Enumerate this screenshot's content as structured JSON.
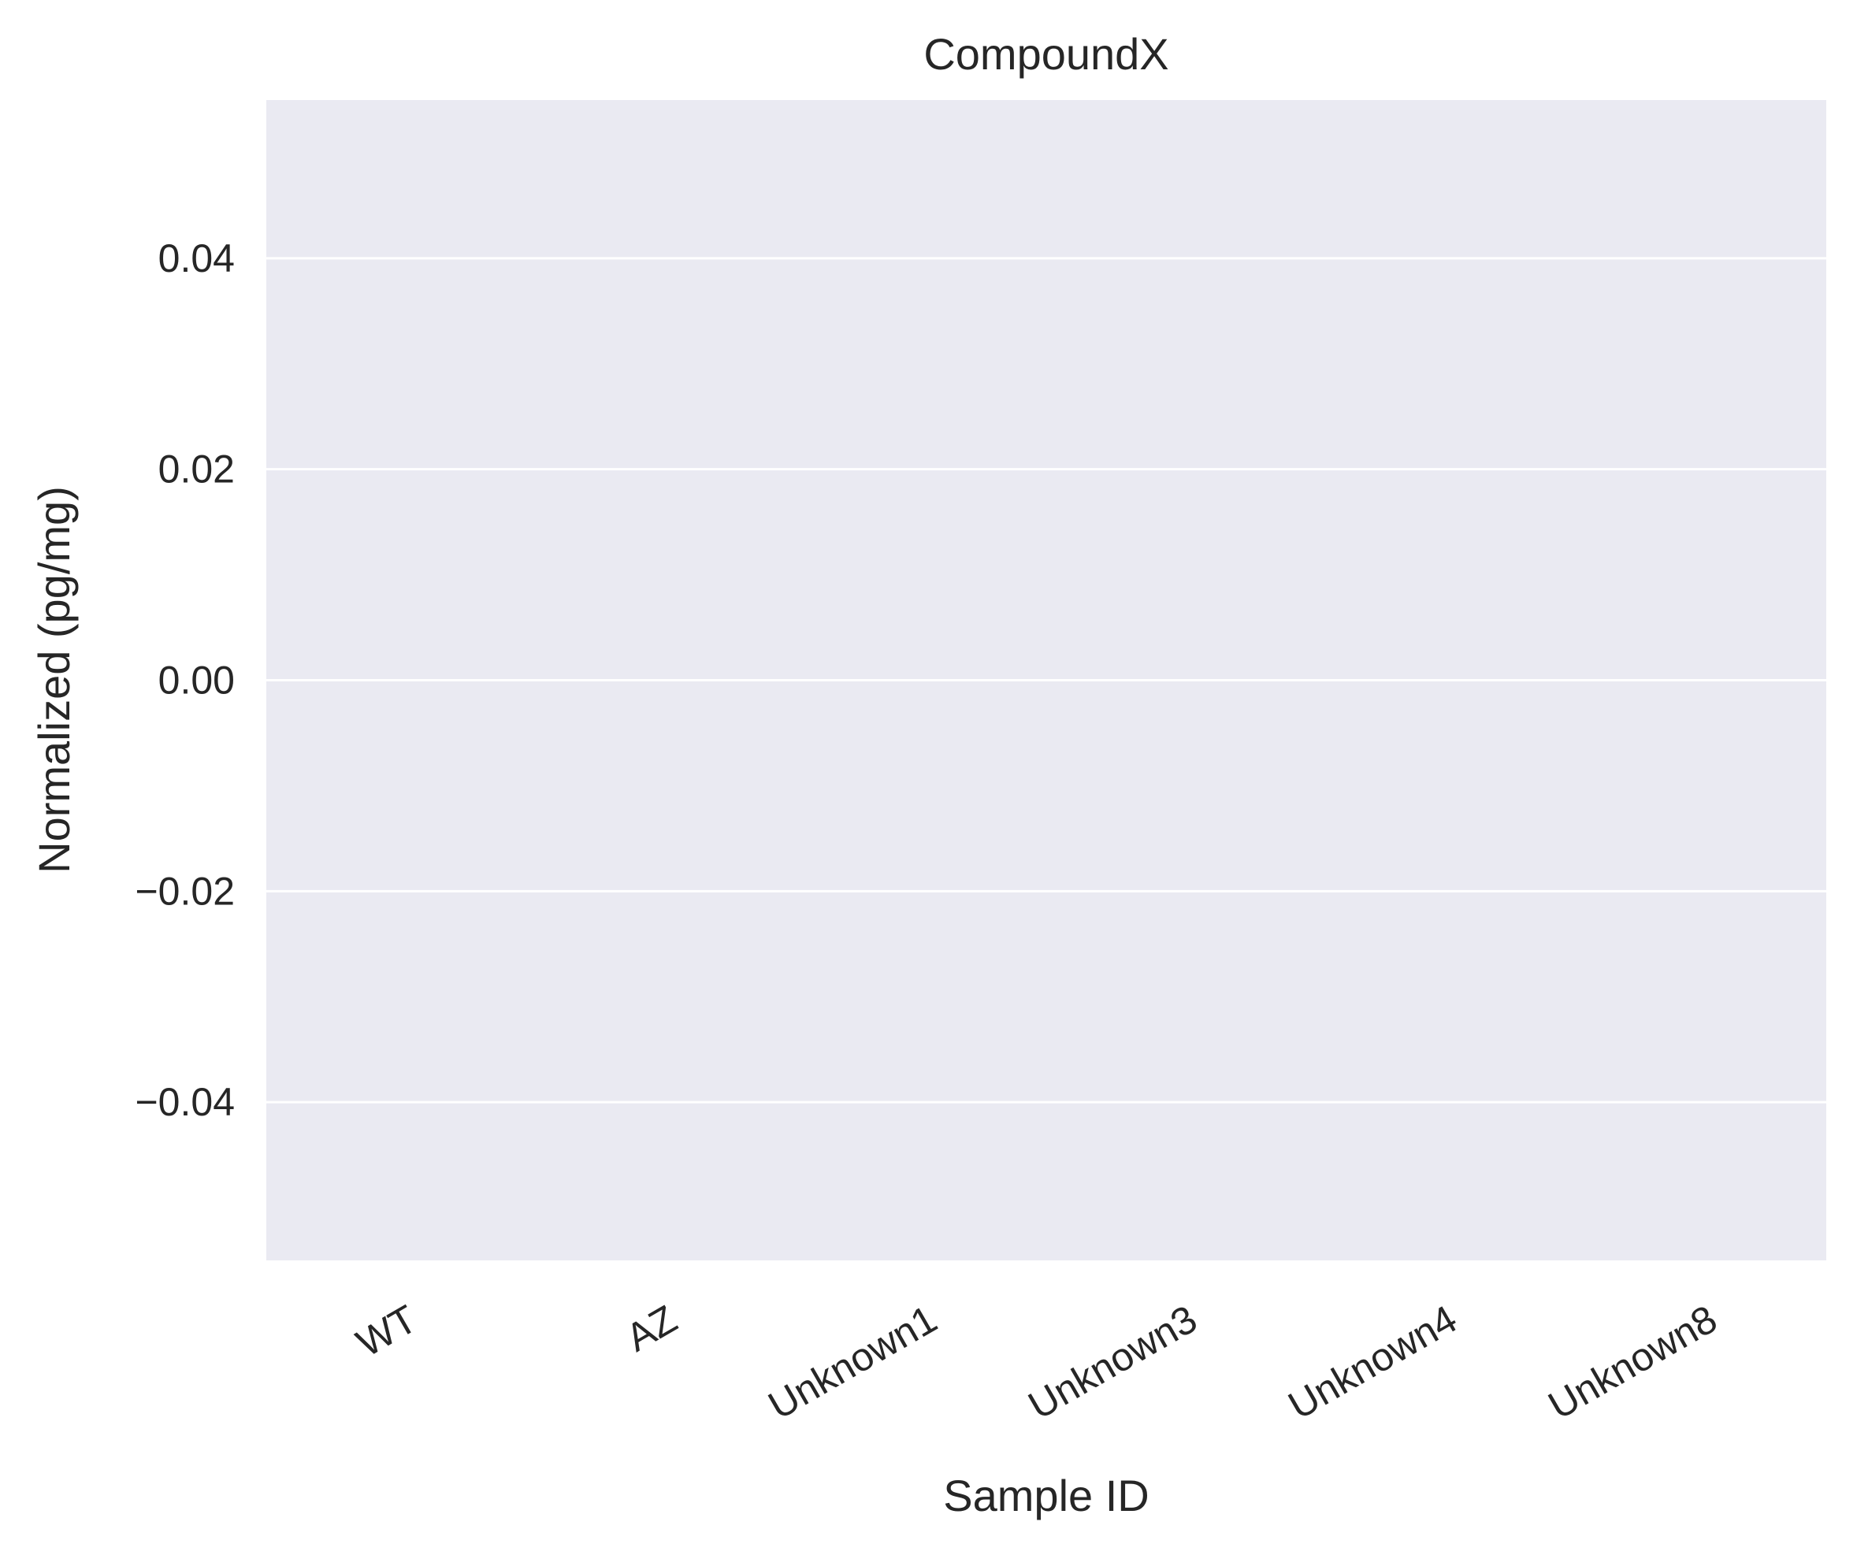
{
  "chart_data": {
    "type": "bar",
    "title": "CompoundX",
    "xlabel": "Sample ID",
    "ylabel": "Normalized (pg/mg)",
    "categories": [
      "WT",
      "AZ",
      "Unknown1",
      "Unknown3",
      "Unknown4",
      "Unknown8"
    ],
    "values": [
      null,
      null,
      null,
      null,
      null,
      null
    ],
    "ylim": [
      -0.055,
      0.055
    ],
    "yticks": [
      0.04,
      0.02,
      0.0,
      -0.02,
      -0.04
    ],
    "ytick_labels": [
      "0.04",
      "0.02",
      "0.00",
      "−0.02",
      "−0.04"
    ],
    "grid": true,
    "legend": "none",
    "colors": {
      "plot_background": "#eaeaf2",
      "grid": "#ffffff",
      "text": "#262626"
    }
  }
}
